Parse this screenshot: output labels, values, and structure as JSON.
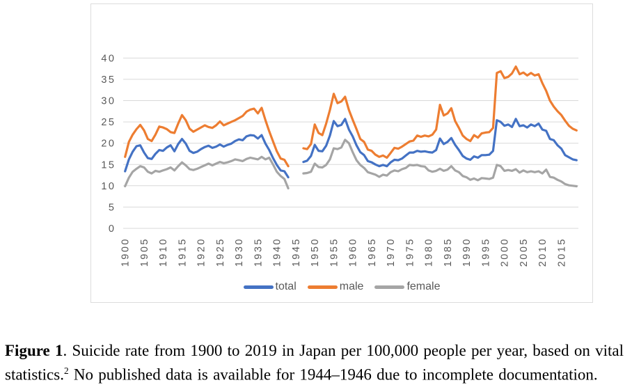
{
  "chart_data": {
    "type": "line",
    "title": "",
    "xlabel": "",
    "ylabel": "",
    "ylim": [
      0,
      40
    ],
    "yticks": [
      0,
      5,
      10,
      15,
      20,
      25,
      30,
      35,
      40
    ],
    "xticks": [
      1900,
      1905,
      1910,
      1915,
      1920,
      1925,
      1930,
      1935,
      1940,
      1945,
      1950,
      1955,
      1960,
      1965,
      1970,
      1975,
      1980,
      1985,
      1990,
      1995,
      2000,
      2005,
      2010,
      2015
    ],
    "legend_position": "bottom",
    "grid": "horizontal",
    "gridline_color": "#d9d9d9",
    "axis_label_color": "#595959",
    "gap_years": "1944-1946",
    "years": [
      1900,
      1901,
      1902,
      1903,
      1904,
      1905,
      1906,
      1907,
      1908,
      1909,
      1910,
      1911,
      1912,
      1913,
      1914,
      1915,
      1916,
      1917,
      1918,
      1919,
      1920,
      1921,
      1922,
      1923,
      1924,
      1925,
      1926,
      1927,
      1928,
      1929,
      1930,
      1931,
      1932,
      1933,
      1934,
      1935,
      1936,
      1937,
      1938,
      1939,
      1940,
      1941,
      1942,
      1943,
      1944,
      1945,
      1946,
      1947,
      1948,
      1949,
      1950,
      1951,
      1952,
      1953,
      1954,
      1955,
      1956,
      1957,
      1958,
      1959,
      1960,
      1961,
      1962,
      1963,
      1964,
      1965,
      1966,
      1967,
      1968,
      1969,
      1970,
      1971,
      1972,
      1973,
      1974,
      1975,
      1976,
      1977,
      1978,
      1979,
      1980,
      1981,
      1982,
      1983,
      1984,
      1985,
      1986,
      1987,
      1988,
      1989,
      1990,
      1991,
      1992,
      1993,
      1994,
      1995,
      1996,
      1997,
      1998,
      1999,
      2000,
      2001,
      2002,
      2003,
      2004,
      2005,
      2006,
      2007,
      2008,
      2009,
      2010,
      2011,
      2012,
      2013,
      2014,
      2015,
      2016,
      2017,
      2018,
      2019
    ],
    "series": [
      {
        "name": "total",
        "color": "#4472c4",
        "values": [
          13.4,
          16.2,
          18.0,
          19.3,
          19.5,
          17.8,
          16.5,
          16.3,
          17.5,
          18.4,
          18.2,
          19.0,
          19.5,
          18.1,
          19.8,
          21.0,
          19.9,
          18.2,
          17.7,
          18.0,
          18.6,
          19.1,
          19.4,
          18.9,
          19.2,
          19.7,
          19.2,
          19.6,
          19.9,
          20.5,
          20.9,
          20.7,
          21.6,
          21.9,
          21.8,
          21.1,
          21.9,
          19.9,
          18.4,
          16.5,
          14.9,
          13.6,
          13.4,
          12.0,
          null,
          null,
          null,
          15.6,
          15.9,
          17.0,
          19.6,
          18.2,
          18.1,
          19.4,
          21.8,
          25.2,
          24.0,
          24.3,
          25.7,
          23.2,
          21.6,
          19.5,
          17.9,
          17.2,
          15.8,
          15.5,
          15.0,
          14.6,
          14.9,
          14.6,
          15.5,
          16.1,
          16.0,
          16.4,
          17.1,
          17.8,
          17.8,
          18.2,
          18.0,
          18.1,
          17.9,
          17.8,
          18.4,
          21.1,
          19.8,
          20.3,
          21.2,
          19.6,
          18.4,
          17.0,
          16.4,
          16.1,
          16.9,
          16.6,
          17.2,
          17.2,
          17.3,
          18.2,
          25.4,
          25.0,
          24.1,
          24.4,
          23.8,
          25.7,
          24.0,
          24.2,
          23.7,
          24.4,
          24.0,
          24.6,
          23.2,
          22.9,
          21.0,
          20.7,
          19.5,
          18.7,
          17.2,
          16.7,
          16.2,
          16.0
        ]
      },
      {
        "name": "male",
        "color": "#ed7d31",
        "values": [
          16.8,
          20.3,
          22.0,
          23.3,
          24.3,
          23.0,
          21.0,
          20.5,
          22.0,
          23.9,
          23.7,
          23.3,
          22.6,
          22.4,
          24.6,
          26.6,
          25.4,
          23.4,
          22.7,
          23.2,
          23.7,
          24.2,
          23.8,
          23.6,
          24.2,
          25.1,
          24.2,
          24.6,
          25.0,
          25.4,
          25.9,
          26.4,
          27.4,
          27.9,
          28.1,
          27.0,
          28.3,
          25.4,
          22.8,
          20.4,
          18.1,
          16.4,
          16.1,
          14.6,
          null,
          null,
          null,
          18.8,
          18.6,
          19.8,
          24.4,
          22.4,
          21.9,
          24.6,
          27.8,
          31.6,
          29.4,
          29.8,
          30.9,
          27.8,
          25.5,
          23.3,
          21.0,
          20.3,
          18.5,
          18.2,
          17.3,
          16.8,
          17.1,
          16.6,
          17.7,
          18.9,
          18.7,
          19.2,
          19.8,
          20.4,
          20.6,
          21.8,
          21.5,
          21.8,
          21.6,
          22.0,
          23.2,
          29.0,
          26.5,
          27.0,
          28.2,
          25.2,
          23.6,
          21.8,
          21.0,
          20.5,
          21.9,
          21.3,
          22.3,
          22.5,
          22.6,
          23.6,
          36.5,
          36.9,
          35.3,
          35.6,
          36.4,
          38.0,
          36.2,
          36.6,
          35.9,
          36.5,
          35.9,
          36.2,
          34.1,
          32.3,
          30.0,
          28.6,
          27.5,
          26.6,
          25.3,
          24.1,
          23.4,
          23.0
        ]
      },
      {
        "name": "female",
        "color": "#a5a5a5",
        "values": [
          9.9,
          11.9,
          13.3,
          14.0,
          14.6,
          14.3,
          13.3,
          12.9,
          13.5,
          13.3,
          13.6,
          13.9,
          14.3,
          13.6,
          14.6,
          15.5,
          14.8,
          13.9,
          13.7,
          14.0,
          14.4,
          14.8,
          15.2,
          14.8,
          15.2,
          15.6,
          15.3,
          15.5,
          15.8,
          16.2,
          16.0,
          15.8,
          16.3,
          16.6,
          16.4,
          16.2,
          16.8,
          16.2,
          16.6,
          15.0,
          13.3,
          12.3,
          11.6,
          9.4,
          null,
          null,
          null,
          12.9,
          13.0,
          13.3,
          15.2,
          14.4,
          14.3,
          14.9,
          16.2,
          18.8,
          18.6,
          19.0,
          20.8,
          20.0,
          17.9,
          16.0,
          14.9,
          14.2,
          13.2,
          12.9,
          12.6,
          12.1,
          12.6,
          12.4,
          13.2,
          13.6,
          13.4,
          13.9,
          14.2,
          14.9,
          14.8,
          14.9,
          14.6,
          14.5,
          13.6,
          13.3,
          13.5,
          14.0,
          13.5,
          13.8,
          14.6,
          13.6,
          13.2,
          12.3,
          12.0,
          11.4,
          11.7,
          11.3,
          11.8,
          11.7,
          11.6,
          11.9,
          14.9,
          14.6,
          13.5,
          13.7,
          13.5,
          13.9,
          13.1,
          13.6,
          13.2,
          13.4,
          13.2,
          13.4,
          12.9,
          13.8,
          12.1,
          11.9,
          11.4,
          11.0,
          10.4,
          10.1,
          10.0,
          9.9
        ]
      }
    ]
  },
  "caption": {
    "figure_label": "Figure 1",
    "body": ". Suicide rate from 1900 to 2019 in Japan per 100,000 people per year, based on vital statistics.",
    "footnote": "2",
    "rest": " No published data is available for 1944–1946 due to incomplete documentation."
  }
}
